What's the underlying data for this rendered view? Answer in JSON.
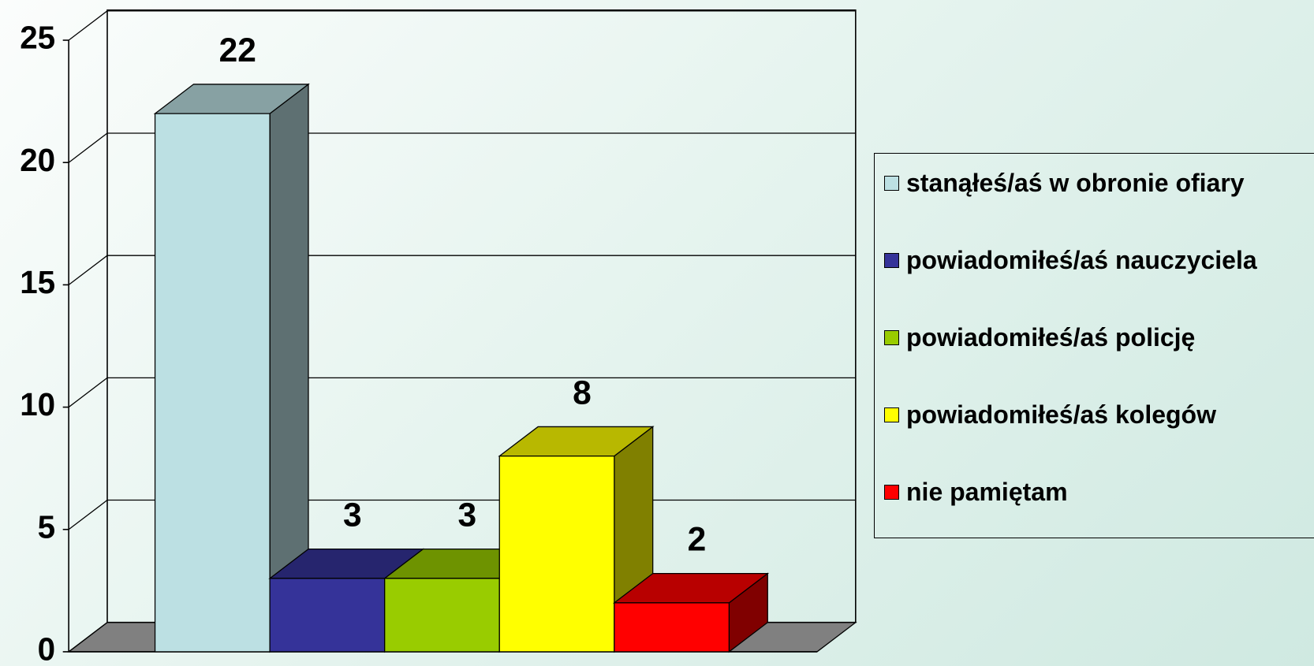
{
  "chart_data": {
    "type": "bar",
    "series": [
      {
        "name": "stanąłeś/aś w obronie ofiary",
        "color": "#bce0e3",
        "values": [
          22
        ]
      },
      {
        "name": "powiadomiłeś/aś nauczyciela",
        "color": "#353399",
        "values": [
          3
        ]
      },
      {
        "name": "powiadomiłeś/aś policję",
        "color": "#99cc00",
        "values": [
          3
        ]
      },
      {
        "name": "powiadomiłeś/aś kolegów",
        "color": "#ffff00",
        "values": [
          8
        ]
      },
      {
        "name": "nie pamiętam",
        "color": "#ff0000",
        "values": [
          2
        ]
      }
    ],
    "ylim": [
      0,
      25
    ],
    "yticks": [
      0,
      5,
      10,
      15,
      20,
      25
    ],
    "grid": true,
    "legend": "right"
  }
}
